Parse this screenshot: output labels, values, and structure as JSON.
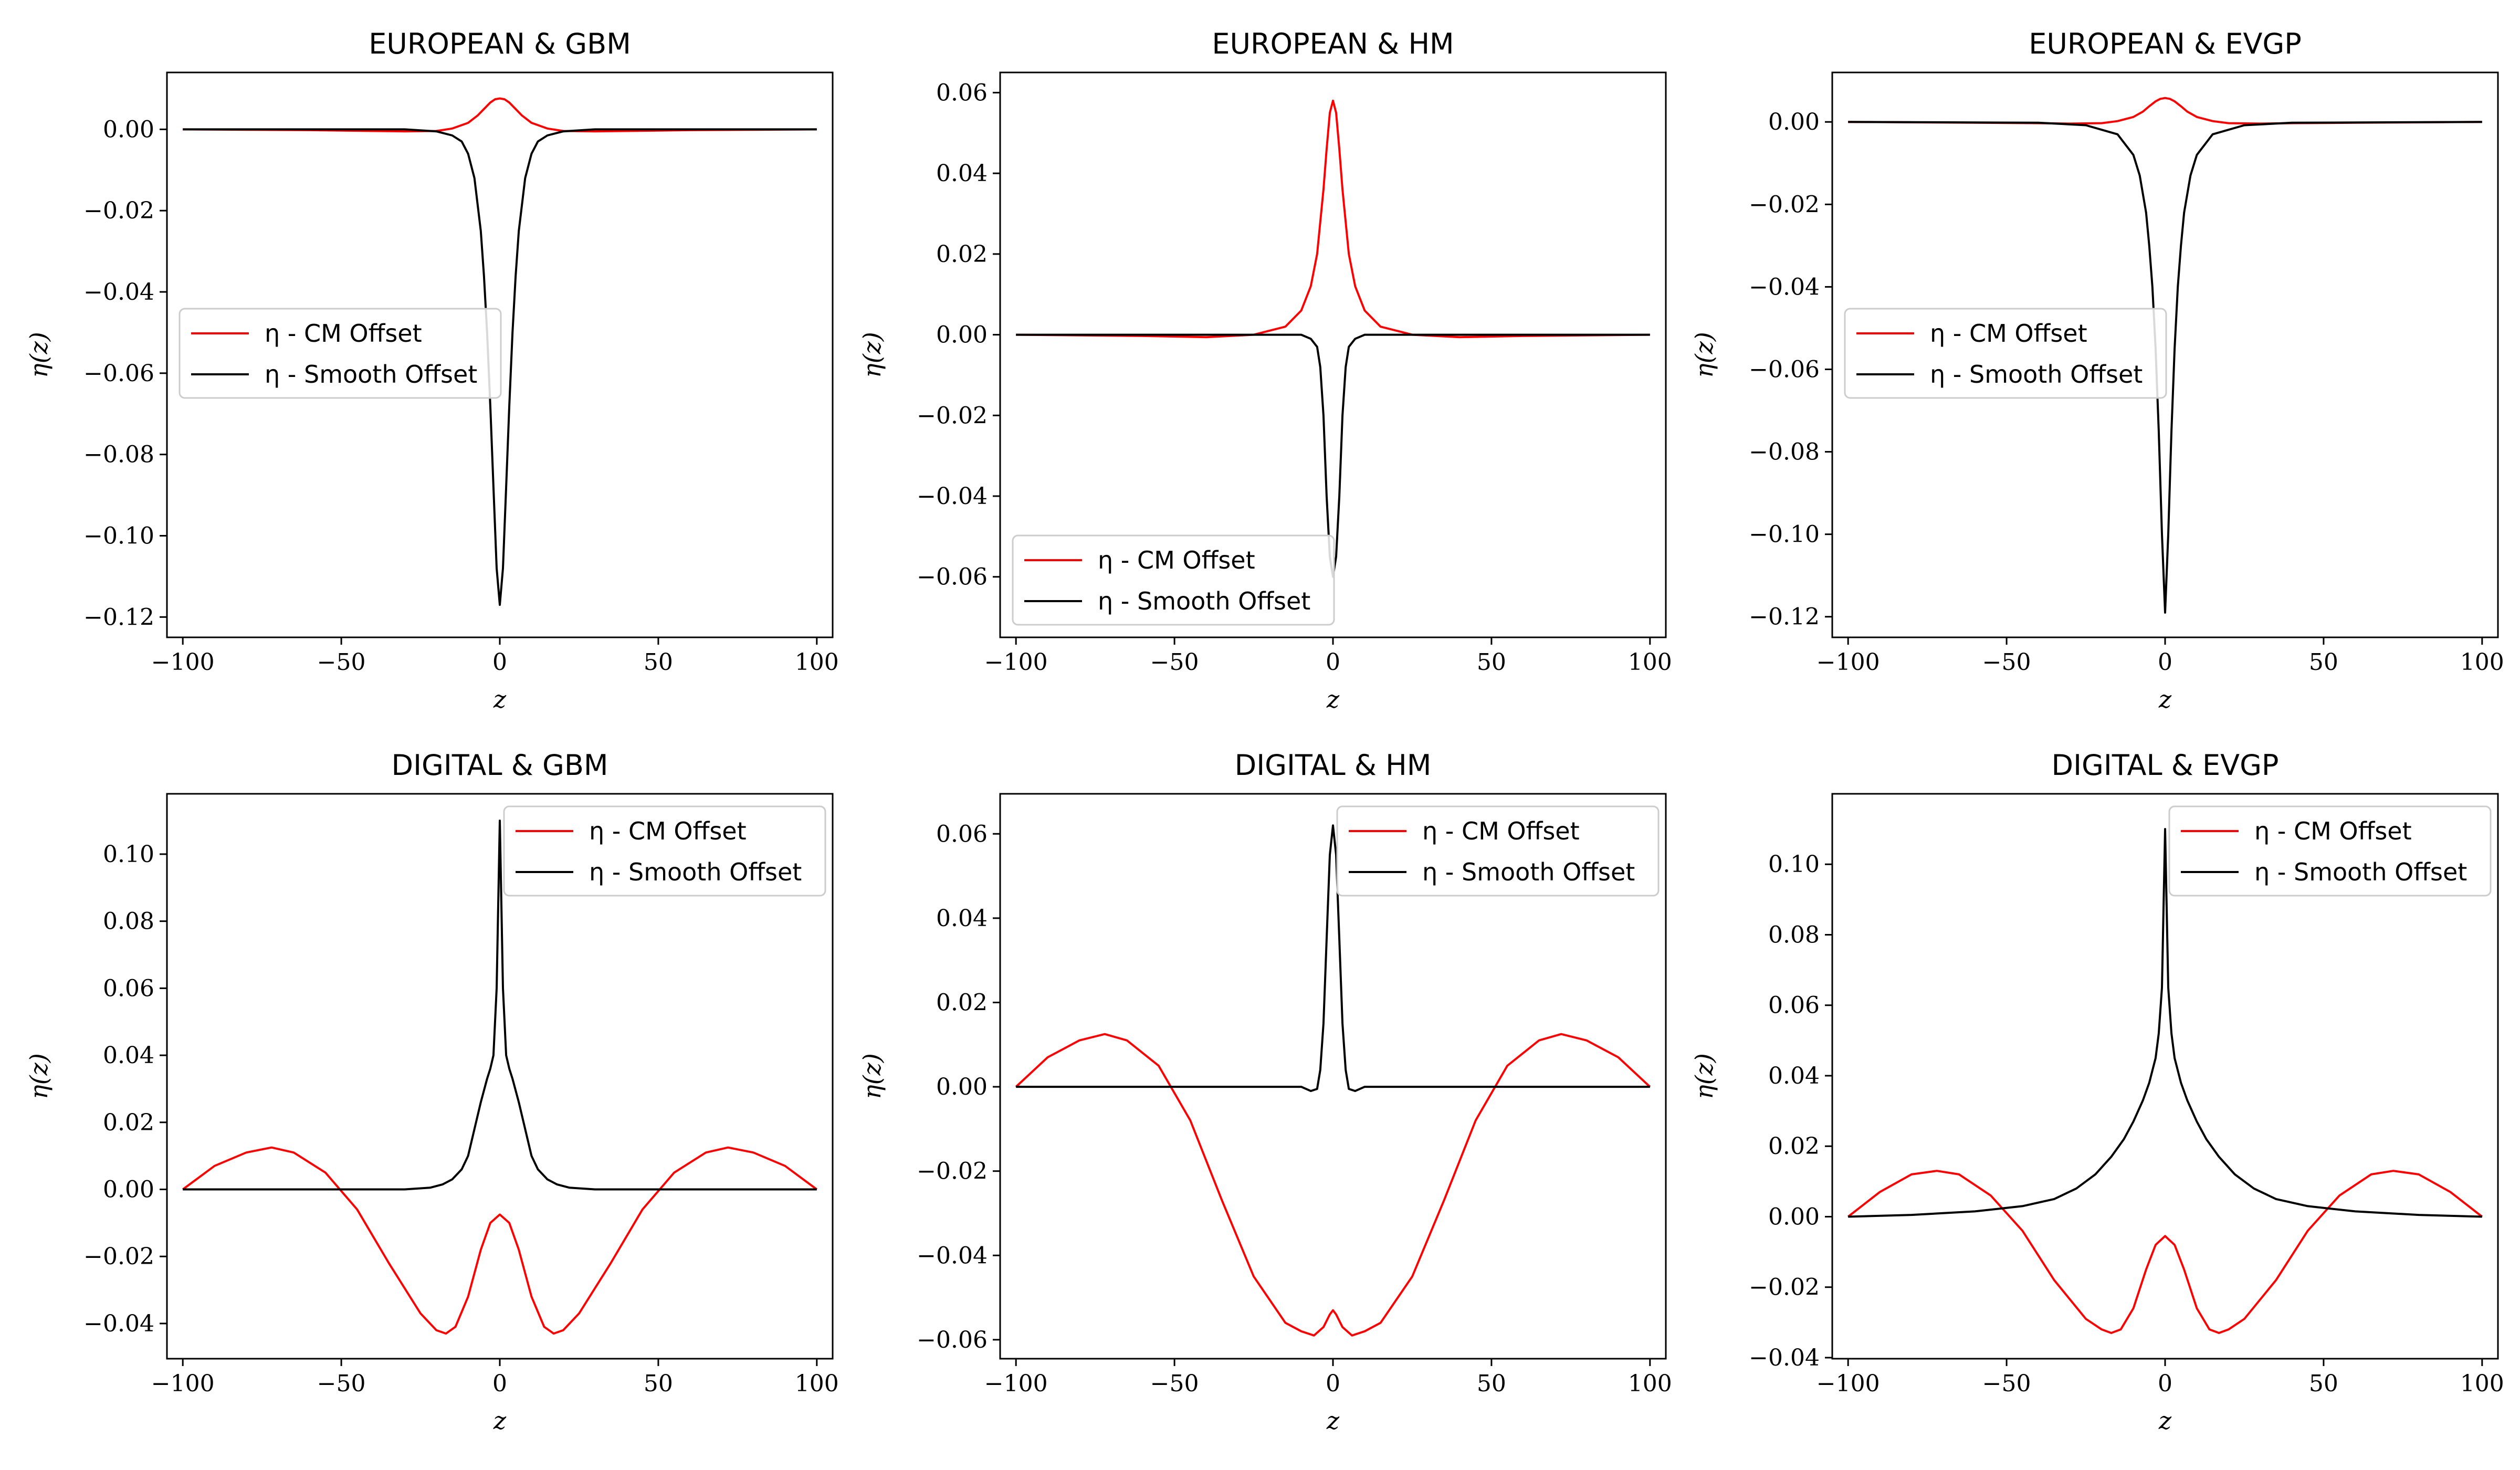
{
  "chart_data": [
    {
      "type": "line",
      "title": "EUROPEAN & GBM",
      "xlabel": "z",
      "ylabel": "η(z)",
      "xlim": [
        -105,
        105
      ],
      "ylim": [
        -0.125,
        0.014
      ],
      "xticks": [
        -100,
        -50,
        0,
        50,
        100
      ],
      "yticks": [
        0.0,
        -0.02,
        -0.04,
        -0.06,
        -0.08,
        -0.1,
        -0.12
      ],
      "legend": "center-left",
      "series": [
        {
          "name": "η - CM Offset",
          "color": "#ff0000",
          "x": [
            -100,
            -60,
            -40,
            -30,
            -20,
            -15,
            -10,
            -7,
            -5,
            -3,
            -1.5,
            0,
            1.5,
            3,
            5,
            7,
            10,
            15,
            20,
            30,
            40,
            60,
            100
          ],
          "y": [
            0,
            -0.0002,
            -0.0004,
            -0.0005,
            -0.0004,
            0.0002,
            0.0016,
            0.0034,
            0.005,
            0.0066,
            0.0074,
            0.0076,
            0.0074,
            0.0066,
            0.005,
            0.0034,
            0.0016,
            0.0002,
            -0.0004,
            -0.0005,
            -0.0004,
            -0.0002,
            0
          ]
        },
        {
          "name": "η - Smooth Offset",
          "color": "#000000",
          "x": [
            -100,
            -30,
            -20,
            -15,
            -12,
            -10,
            -8,
            -6,
            -5,
            -4,
            -3,
            -2,
            -1,
            0,
            1,
            2,
            3,
            4,
            5,
            6,
            8,
            10,
            12,
            15,
            20,
            30,
            100
          ],
          "y": [
            0,
            0,
            -0.0005,
            -0.0015,
            -0.003,
            -0.006,
            -0.012,
            -0.025,
            -0.036,
            -0.05,
            -0.068,
            -0.088,
            -0.108,
            -0.117,
            -0.108,
            -0.088,
            -0.068,
            -0.05,
            -0.036,
            -0.025,
            -0.012,
            -0.006,
            -0.003,
            -0.0015,
            -0.0005,
            0,
            0
          ]
        }
      ]
    },
    {
      "type": "line",
      "title": "EUROPEAN & HM",
      "xlabel": "z",
      "ylabel": "η(z)",
      "xlim": [
        -105,
        105
      ],
      "ylim": [
        -0.075,
        0.065
      ],
      "xticks": [
        -100,
        -50,
        0,
        50,
        100
      ],
      "yticks": [
        0.06,
        0.04,
        0.02,
        0.0,
        -0.02,
        -0.04,
        -0.06
      ],
      "legend": "lower-left",
      "series": [
        {
          "name": "η - CM Offset",
          "color": "#ff0000",
          "x": [
            -100,
            -60,
            -40,
            -25,
            -15,
            -10,
            -7,
            -5,
            -3,
            -2,
            -1,
            0,
            1,
            2,
            3,
            5,
            7,
            10,
            15,
            25,
            40,
            60,
            100
          ],
          "y": [
            0,
            -0.0003,
            -0.0006,
            0.0,
            0.002,
            0.006,
            0.012,
            0.02,
            0.036,
            0.046,
            0.055,
            0.058,
            0.055,
            0.046,
            0.036,
            0.02,
            0.012,
            0.006,
            0.002,
            0.0,
            -0.0006,
            -0.0003,
            0
          ]
        },
        {
          "name": "η - Smooth Offset",
          "color": "#000000",
          "x": [
            -100,
            -10,
            -7,
            -5,
            -4,
            -3,
            -2,
            -1,
            0,
            1,
            2,
            3,
            4,
            5,
            7,
            10,
            100
          ],
          "y": [
            0,
            0,
            -0.001,
            -0.003,
            -0.008,
            -0.02,
            -0.04,
            -0.055,
            -0.06,
            -0.055,
            -0.04,
            -0.02,
            -0.008,
            -0.003,
            -0.001,
            0,
            0
          ]
        }
      ]
    },
    {
      "type": "line",
      "title": "EUROPEAN & EVGP",
      "xlabel": "z",
      "ylabel": "η(z)",
      "xlim": [
        -105,
        105
      ],
      "ylim": [
        -0.125,
        0.012
      ],
      "xticks": [
        -100,
        -50,
        0,
        50,
        100
      ],
      "yticks": [
        0.0,
        -0.02,
        -0.04,
        -0.06,
        -0.08,
        -0.1,
        -0.12
      ],
      "legend": "center-left",
      "series": [
        {
          "name": "η - CM Offset",
          "color": "#ff0000",
          "x": [
            -100,
            -60,
            -40,
            -30,
            -20,
            -15,
            -10,
            -7,
            -5,
            -3,
            -1.5,
            0,
            1.5,
            3,
            5,
            7,
            10,
            15,
            20,
            30,
            40,
            60,
            100
          ],
          "y": [
            0,
            -0.0002,
            -0.0003,
            -0.0004,
            -0.0003,
            0.0002,
            0.0012,
            0.0025,
            0.0038,
            0.005,
            0.0056,
            0.0058,
            0.0056,
            0.005,
            0.0038,
            0.0025,
            0.0012,
            0.0002,
            -0.0003,
            -0.0004,
            -0.0003,
            -0.0002,
            0
          ]
        },
        {
          "name": "η - Smooth Offset",
          "color": "#000000",
          "x": [
            -100,
            -40,
            -25,
            -15,
            -10,
            -8,
            -6,
            -5,
            -4,
            -3,
            -2,
            -1,
            0,
            1,
            2,
            3,
            4,
            5,
            6,
            8,
            10,
            15,
            25,
            40,
            100
          ],
          "y": [
            0,
            -0.0002,
            -0.0008,
            -0.003,
            -0.008,
            -0.013,
            -0.022,
            -0.03,
            -0.04,
            -0.055,
            -0.075,
            -0.1,
            -0.119,
            -0.1,
            -0.075,
            -0.055,
            -0.04,
            -0.03,
            -0.022,
            -0.013,
            -0.008,
            -0.003,
            -0.0008,
            -0.0002,
            0
          ]
        }
      ]
    },
    {
      "type": "line",
      "title": "DIGITAL & GBM",
      "xlabel": "z",
      "ylabel": "η(z)",
      "xlim": [
        -105,
        105
      ],
      "ylim": [
        -0.0505,
        0.118
      ],
      "xticks": [
        -100,
        -50,
        0,
        50,
        100
      ],
      "yticks": [
        0.1,
        0.08,
        0.06,
        0.04,
        0.02,
        0.0,
        -0.02,
        -0.04
      ],
      "legend": "upper-right",
      "series": [
        {
          "name": "η - CM Offset",
          "color": "#ff0000",
          "x": [
            -100,
            -90,
            -80,
            -72,
            -65,
            -55,
            -45,
            -35,
            -25,
            -20,
            -17,
            -14,
            -10,
            -6,
            -3,
            0,
            3,
            6,
            10,
            14,
            17,
            20,
            25,
            35,
            45,
            55,
            65,
            72,
            80,
            90,
            100
          ],
          "y": [
            0,
            0.007,
            0.011,
            0.0125,
            0.011,
            0.005,
            -0.006,
            -0.022,
            -0.037,
            -0.042,
            -0.043,
            -0.041,
            -0.032,
            -0.018,
            -0.01,
            -0.0075,
            -0.01,
            -0.018,
            -0.032,
            -0.041,
            -0.043,
            -0.042,
            -0.037,
            -0.022,
            -0.006,
            0.005,
            0.011,
            0.0125,
            0.011,
            0.007,
            0
          ]
        },
        {
          "name": "η - Smooth Offset",
          "color": "#000000",
          "x": [
            -100,
            -30,
            -22,
            -18,
            -15,
            -12,
            -10,
            -8,
            -6,
            -4,
            -3,
            -2,
            -1,
            0,
            1,
            2,
            3,
            4,
            6,
            8,
            10,
            12,
            15,
            18,
            22,
            30,
            100
          ],
          "y": [
            0,
            0,
            0.0005,
            0.0015,
            0.003,
            0.006,
            0.01,
            0.018,
            0.026,
            0.033,
            0.036,
            0.04,
            0.06,
            0.11,
            0.06,
            0.04,
            0.036,
            0.033,
            0.026,
            0.018,
            0.01,
            0.006,
            0.003,
            0.0015,
            0.0005,
            0,
            0
          ]
        }
      ]
    },
    {
      "type": "line",
      "title": "DIGITAL & HM",
      "xlabel": "z",
      "ylabel": "η(z)",
      "xlim": [
        -105,
        105
      ],
      "ylim": [
        -0.0645,
        0.0695
      ],
      "xticks": [
        -100,
        -50,
        0,
        50,
        100
      ],
      "yticks": [
        0.06,
        0.04,
        0.02,
        0.0,
        -0.02,
        -0.04,
        -0.06
      ],
      "legend": "upper-right",
      "series": [
        {
          "name": "η - CM Offset",
          "color": "#ff0000",
          "x": [
            -100,
            -90,
            -80,
            -72,
            -65,
            -55,
            -45,
            -35,
            -25,
            -15,
            -10,
            -6,
            -3,
            -1,
            0,
            1,
            3,
            6,
            10,
            15,
            25,
            35,
            45,
            55,
            65,
            72,
            80,
            90,
            100
          ],
          "y": [
            0,
            0.007,
            0.011,
            0.0125,
            0.011,
            0.005,
            -0.008,
            -0.027,
            -0.045,
            -0.056,
            -0.058,
            -0.059,
            -0.057,
            -0.054,
            -0.053,
            -0.054,
            -0.057,
            -0.059,
            -0.058,
            -0.056,
            -0.045,
            -0.027,
            -0.008,
            0.005,
            0.011,
            0.0125,
            0.011,
            0.007,
            0
          ]
        },
        {
          "name": "η - Smooth Offset",
          "color": "#000000",
          "x": [
            -100,
            -10,
            -7,
            -5,
            -4,
            -3,
            -2,
            -1,
            0,
            1,
            2,
            3,
            4,
            5,
            7,
            10,
            100
          ],
          "y": [
            0,
            0,
            -0.001,
            -0.0005,
            0.004,
            0.015,
            0.035,
            0.055,
            0.062,
            0.055,
            0.035,
            0.015,
            0.004,
            -0.0005,
            -0.001,
            0,
            0
          ]
        }
      ]
    },
    {
      "type": "line",
      "title": "DIGITAL & EVGP",
      "xlabel": "z",
      "ylabel": "η(z)",
      "xlim": [
        -105,
        105
      ],
      "ylim": [
        -0.0403,
        0.12
      ],
      "xticks": [
        -100,
        -50,
        0,
        50,
        100
      ],
      "yticks": [
        0.1,
        0.08,
        0.06,
        0.04,
        0.02,
        0.0,
        -0.02,
        -0.04
      ],
      "legend": "upper-right",
      "series": [
        {
          "name": "η - CM Offset",
          "color": "#ff0000",
          "x": [
            -100,
            -90,
            -80,
            -72,
            -65,
            -55,
            -45,
            -35,
            -25,
            -20,
            -17,
            -14,
            -10,
            -6,
            -3,
            0,
            3,
            6,
            10,
            14,
            17,
            20,
            25,
            35,
            45,
            55,
            65,
            72,
            80,
            90,
            100
          ],
          "y": [
            0,
            0.007,
            0.012,
            0.013,
            0.012,
            0.006,
            -0.004,
            -0.018,
            -0.029,
            -0.032,
            -0.033,
            -0.032,
            -0.026,
            -0.015,
            -0.008,
            -0.0055,
            -0.008,
            -0.015,
            -0.026,
            -0.032,
            -0.033,
            -0.032,
            -0.029,
            -0.018,
            -0.004,
            0.006,
            0.012,
            0.013,
            0.012,
            0.007,
            0
          ]
        },
        {
          "name": "η - Smooth Offset",
          "color": "#000000",
          "x": [
            -100,
            -80,
            -60,
            -45,
            -35,
            -28,
            -22,
            -17,
            -13,
            -10,
            -7,
            -5,
            -3,
            -2,
            -1,
            0,
            1,
            2,
            3,
            5,
            7,
            10,
            13,
            17,
            22,
            28,
            35,
            45,
            60,
            80,
            100
          ],
          "y": [
            0,
            0.0005,
            0.0015,
            0.003,
            0.005,
            0.008,
            0.012,
            0.017,
            0.022,
            0.027,
            0.033,
            0.038,
            0.045,
            0.052,
            0.065,
            0.11,
            0.065,
            0.052,
            0.045,
            0.038,
            0.033,
            0.027,
            0.022,
            0.017,
            0.012,
            0.008,
            0.005,
            0.003,
            0.0015,
            0.0005,
            0
          ]
        }
      ]
    }
  ]
}
